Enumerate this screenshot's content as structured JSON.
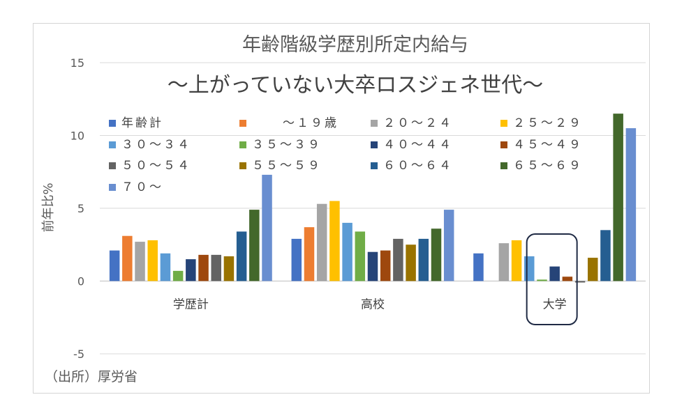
{
  "chart_data": {
    "type": "bar",
    "title": "年齢階級学歴別所定内給与",
    "subtitle": "～上がっていない大卒ロスジェネ世代～",
    "ylabel": "前年比%",
    "xlabel": "",
    "ylim": [
      -5,
      15
    ],
    "yticks": [
      -5,
      0,
      5,
      10,
      15
    ],
    "grid": true,
    "legend_position": "top",
    "source_note": "（出所）厚労省",
    "categories": [
      "学歴計",
      "高校",
      "大学"
    ],
    "highlight_category": "大学",
    "series": [
      {
        "name": "年齢計",
        "color": "#4472c4",
        "values": [
          2.1,
          2.9,
          1.9
        ]
      },
      {
        "name": "～１９歳",
        "color": "#ed7d31",
        "values": [
          3.1,
          3.7,
          null
        ]
      },
      {
        "name": "２０～２４",
        "color": "#a5a5a5",
        "values": [
          2.7,
          5.3,
          2.6
        ]
      },
      {
        "name": "２５～２９",
        "color": "#ffc000",
        "values": [
          2.8,
          5.5,
          2.8
        ]
      },
      {
        "name": "３０～３４",
        "color": "#5b9bd5",
        "values": [
          1.9,
          4.0,
          1.7
        ]
      },
      {
        "name": "３５～３９",
        "color": "#70ad47",
        "values": [
          0.7,
          3.4,
          0.1
        ]
      },
      {
        "name": "４０～４４",
        "color": "#264478",
        "values": [
          1.5,
          2.0,
          1.0
        ]
      },
      {
        "name": "４５～４９",
        "color": "#9e480e",
        "values": [
          1.8,
          2.1,
          0.3
        ]
      },
      {
        "name": "５０～５４",
        "color": "#636363",
        "values": [
          1.8,
          2.9,
          -0.1
        ]
      },
      {
        "name": "５５～５９",
        "color": "#997300",
        "values": [
          1.7,
          2.5,
          1.6
        ]
      },
      {
        "name": "６０～６４",
        "color": "#255e91",
        "values": [
          3.4,
          2.9,
          3.5
        ]
      },
      {
        "name": "６５～６９",
        "color": "#43682b",
        "values": [
          4.9,
          3.6,
          11.5
        ]
      },
      {
        "name": "７０～",
        "color": "#698ed0",
        "values": [
          7.3,
          4.9,
          10.5
        ]
      }
    ]
  }
}
